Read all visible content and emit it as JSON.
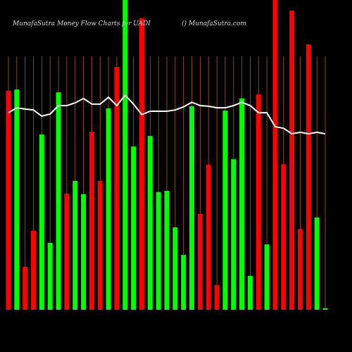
{
  "chart_data": {
    "type": "bar",
    "title": "MunafaSutra  Money Flow  Charts for UADI",
    "subtitle": "() MunafaSutra.com",
    "categories": [
      null,
      null,
      null,
      null,
      null,
      null,
      null,
      null,
      null,
      null,
      null,
      null,
      null,
      null,
      null,
      null,
      null,
      null,
      null,
      null,
      null,
      null,
      null,
      null,
      null,
      null,
      null,
      null,
      null,
      null,
      null,
      null,
      null,
      null,
      null,
      null,
      null,
      null,
      null
    ],
    "ylim": [
      0,
      100
    ],
    "series": [
      {
        "type": "bar",
        "colors": [
          "#ff0000",
          "#00ff00",
          "#ff0000",
          "#ff0000",
          "#00ff00",
          "#00ff00",
          "#00ff00",
          "#ff0000",
          "#00ff00",
          "#00ff00",
          "#ff0000",
          "#ff0000",
          "#00ff00",
          "#ff0000",
          "#00ff00",
          "#00ff00",
          "#ff0000",
          "#00ff00",
          "#00ff00",
          "#00ff00",
          "#00ff00",
          "#00ff00",
          "#00ff00",
          "#ff0000",
          "#ff0000",
          "#ff0000",
          "#00ff00",
          "#00ff00",
          "#00ff00",
          "#00ff00",
          "#ff0000",
          "#00ff00",
          "#ff0000",
          "#ff0000",
          "#ff0000",
          "#ff0000",
          "#ff0000",
          "#00ff00",
          "#00ff00"
        ],
        "values": [
          70.7,
          71.1,
          13.9,
          25.5,
          56.6,
          21.6,
          70.2,
          37.5,
          41.6,
          37.3,
          57.5,
          41.6,
          65,
          78.4,
          105,
          52.7,
          94.1,
          56.1,
          38,
          38.4,
          26.6,
          17.7,
          65.7,
          30.9,
          46.8,
          8,
          64.3,
          48.6,
          68.2,
          10.9,
          69.5,
          21.1,
          105,
          47,
          96.6,
          26.1,
          85.7,
          29.8,
          0.5
        ]
      },
      {
        "type": "line",
        "color": "#ffffff",
        "values": [
          63.6,
          65.2,
          64.8,
          64.5,
          62.5,
          63.2,
          65.9,
          65.9,
          66.8,
          68.2,
          66.4,
          66.4,
          68.6,
          65.9,
          69.3,
          66.4,
          63,
          64.1,
          64.1,
          64.1,
          64.5,
          65.5,
          67,
          65.9,
          65.7,
          65.2,
          65.2,
          65.9,
          67,
          65.9,
          63.6,
          63.6,
          59.1,
          58.6,
          56.8,
          57.3,
          56.8,
          57.3,
          56.8
        ]
      }
    ]
  }
}
